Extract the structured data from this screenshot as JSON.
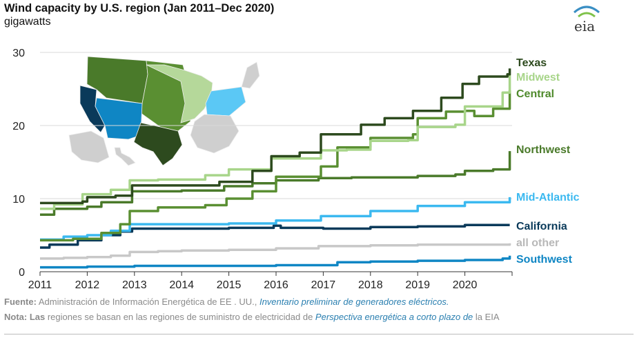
{
  "header": {
    "title": "Wind capacity by U.S. region (Jan 2011–Dec 2020)",
    "subtitle": "gigawatts",
    "logo": "eia"
  },
  "footer": {
    "source_label": "Fuente:",
    "source_text": " Administración de Información Energética de EE . UU., ",
    "source_link": "Inventario preliminar de generadores eléctricos.",
    "note_label": "Nota: Las",
    "note_text": " regiones se basan en las regiones de suministro de electricidad de ",
    "note_link": "Perspectiva energética a corto plazo de",
    "note_tail": " la EIA"
  },
  "map": {
    "region_colors": {
      "Texas": "#2d4a1e",
      "Midwest": "#b5d89a",
      "Central": "#5a8f32",
      "Northwest": "#4a7a2a",
      "Mid-Atlantic": "#5bc8f5",
      "California": "#0a3a5a",
      "Southwest": "#0f86c4",
      "all other": "#cfcfcf"
    }
  },
  "chart_data": {
    "type": "line",
    "title": "Wind capacity by U.S. region (Jan 2011–Dec 2020)",
    "ylabel": "gigawatts",
    "xlabel": "",
    "x_ticks": [
      "2011",
      "2012",
      "2013",
      "2014",
      "2015",
      "2016",
      "2017",
      "2018",
      "2019",
      "2020"
    ],
    "y_ticks": [
      "0",
      "10",
      "20",
      "30"
    ],
    "xlim": [
      2011.0,
      2021.0
    ],
    "ylim": [
      0,
      30
    ],
    "grid": "horizontal",
    "series": [
      {
        "name": "all other",
        "color": "#c8c8c8",
        "points": [
          [
            2011.0,
            1.8
          ],
          [
            2011.5,
            1.9
          ],
          [
            2012.0,
            2.0
          ],
          [
            2012.5,
            2.2
          ],
          [
            2012.9,
            2.7
          ],
          [
            2013.5,
            2.8
          ],
          [
            2014.0,
            2.9
          ],
          [
            2015.0,
            3.0
          ],
          [
            2016.0,
            3.2
          ],
          [
            2016.9,
            3.5
          ],
          [
            2018.0,
            3.6
          ],
          [
            2019.0,
            3.7
          ],
          [
            2020.0,
            3.7
          ],
          [
            2020.95,
            3.9
          ]
        ]
      },
      {
        "name": "Southwest",
        "color": "#0f86c4",
        "points": [
          [
            2011.0,
            0.6
          ],
          [
            2012.0,
            0.7
          ],
          [
            2013.0,
            0.8
          ],
          [
            2015.0,
            0.8
          ],
          [
            2016.0,
            0.9
          ],
          [
            2017.0,
            0.9
          ],
          [
            2017.3,
            1.3
          ],
          [
            2018.0,
            1.4
          ],
          [
            2019.0,
            1.5
          ],
          [
            2020.0,
            1.6
          ],
          [
            2020.8,
            1.8
          ],
          [
            2020.95,
            2.2
          ]
        ]
      },
      {
        "name": "California",
        "color": "#0a3a5a",
        "points": [
          [
            2011.0,
            3.3
          ],
          [
            2011.2,
            3.7
          ],
          [
            2011.8,
            4.3
          ],
          [
            2012.3,
            5.0
          ],
          [
            2012.7,
            5.5
          ],
          [
            2012.95,
            5.9
          ],
          [
            2014.0,
            5.9
          ],
          [
            2015.0,
            6.0
          ],
          [
            2015.95,
            6.3
          ],
          [
            2016.1,
            6.0
          ],
          [
            2017.0,
            5.9
          ],
          [
            2018.0,
            6.1
          ],
          [
            2019.0,
            6.2
          ],
          [
            2020.0,
            6.4
          ],
          [
            2020.95,
            6.4
          ]
        ]
      },
      {
        "name": "Mid-Atlantic",
        "color": "#3bb9f0",
        "points": [
          [
            2011.0,
            4.4
          ],
          [
            2011.5,
            4.8
          ],
          [
            2012.0,
            5.0
          ],
          [
            2012.5,
            5.6
          ],
          [
            2012.9,
            6.5
          ],
          [
            2014.0,
            6.5
          ],
          [
            2015.0,
            6.6
          ],
          [
            2016.0,
            7.0
          ],
          [
            2016.95,
            7.6
          ],
          [
            2018.0,
            8.3
          ],
          [
            2019.0,
            9.0
          ],
          [
            2020.0,
            9.5
          ],
          [
            2020.95,
            10.2
          ]
        ]
      },
      {
        "name": "Northwest",
        "color": "#4a7a2a",
        "points": [
          [
            2011.0,
            7.8
          ],
          [
            2011.3,
            8.6
          ],
          [
            2012.0,
            8.9
          ],
          [
            2012.3,
            9.5
          ],
          [
            2012.95,
            11.0
          ],
          [
            2014.0,
            11.1
          ],
          [
            2014.9,
            11.7
          ],
          [
            2015.5,
            12.1
          ],
          [
            2016.0,
            12.5
          ],
          [
            2016.9,
            12.8
          ],
          [
            2017.6,
            12.9
          ],
          [
            2018.5,
            12.9
          ],
          [
            2019.0,
            13.1
          ],
          [
            2019.8,
            13.3
          ],
          [
            2020.0,
            13.8
          ],
          [
            2020.6,
            14.0
          ],
          [
            2020.95,
            16.5
          ]
        ]
      },
      {
        "name": "Central",
        "color": "#5a8f32",
        "points": [
          [
            2011.0,
            4.3
          ],
          [
            2011.7,
            4.5
          ],
          [
            2012.3,
            5.3
          ],
          [
            2012.7,
            6.5
          ],
          [
            2012.9,
            8.3
          ],
          [
            2013.5,
            8.8
          ],
          [
            2014.5,
            9.1
          ],
          [
            2014.95,
            10.0
          ],
          [
            2015.5,
            11.0
          ],
          [
            2016.0,
            13.0
          ],
          [
            2016.95,
            14.4
          ],
          [
            2017.3,
            17.0
          ],
          [
            2018.0,
            18.3
          ],
          [
            2018.9,
            18.8
          ],
          [
            2019.0,
            21.0
          ],
          [
            2019.6,
            21.9
          ],
          [
            2020.0,
            22.0
          ],
          [
            2020.2,
            21.3
          ],
          [
            2020.6,
            22.3
          ],
          [
            2020.95,
            24.8
          ]
        ]
      },
      {
        "name": "Midwest",
        "color": "#a8d58a",
        "points": [
          [
            2011.0,
            8.6
          ],
          [
            2011.3,
            9.2
          ],
          [
            2011.9,
            10.6
          ],
          [
            2012.5,
            11.2
          ],
          [
            2012.9,
            12.5
          ],
          [
            2013.5,
            12.6
          ],
          [
            2014.5,
            13.2
          ],
          [
            2015.0,
            14.0
          ],
          [
            2015.9,
            15.5
          ],
          [
            2016.95,
            16.6
          ],
          [
            2017.5,
            16.7
          ],
          [
            2018.0,
            17.9
          ],
          [
            2018.8,
            18.0
          ],
          [
            2019.0,
            19.8
          ],
          [
            2019.8,
            20.1
          ],
          [
            2020.0,
            22.6
          ],
          [
            2020.8,
            24.5
          ],
          [
            2020.95,
            27.0
          ]
        ]
      },
      {
        "name": "Texas",
        "color": "#2d4a1e",
        "points": [
          [
            2011.0,
            9.4
          ],
          [
            2011.9,
            9.6
          ],
          [
            2012.0,
            10.2
          ],
          [
            2012.6,
            10.4
          ],
          [
            2012.95,
            11.8
          ],
          [
            2014.0,
            11.8
          ],
          [
            2014.8,
            12.3
          ],
          [
            2015.5,
            13.8
          ],
          [
            2015.9,
            15.8
          ],
          [
            2016.5,
            16.3
          ],
          [
            2016.95,
            18.8
          ],
          [
            2017.8,
            20.1
          ],
          [
            2018.3,
            21.0
          ],
          [
            2018.9,
            22.0
          ],
          [
            2019.5,
            23.8
          ],
          [
            2019.95,
            25.7
          ],
          [
            2020.3,
            26.7
          ],
          [
            2020.9,
            27.0
          ],
          [
            2020.95,
            27.8
          ]
        ]
      }
    ]
  }
}
